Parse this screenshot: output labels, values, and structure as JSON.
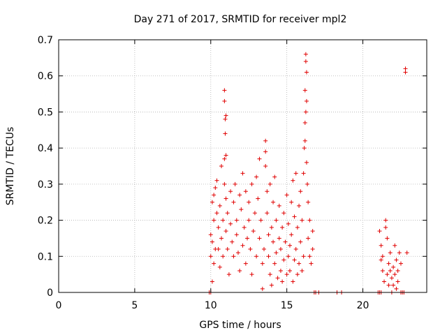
{
  "chart_data": {
    "type": "scatter",
    "title": "Day 271 of 2017, SRMTID for receiver mpl2",
    "xlabel": "GPS time / hours",
    "ylabel": "SRMTID / TECUs",
    "xlim": [
      0,
      24.2
    ],
    "ylim": [
      0,
      0.7
    ],
    "xticks": [
      0,
      5,
      10,
      15,
      20
    ],
    "xtick_labels": [
      "0",
      "5",
      "10",
      "15",
      "20"
    ],
    "yticks": [
      0,
      0.1,
      0.2,
      0.3,
      0.4,
      0.5,
      0.6,
      0.7
    ],
    "ytick_labels": [
      "0",
      "0.1",
      "0.2",
      "0.3",
      "0.4",
      "0.5",
      "0.6",
      "0.7"
    ],
    "grid": true,
    "marker": "plus",
    "color": "#e00000",
    "series": [
      {
        "points": [
          [
            9.9,
            0.0
          ],
          [
            10.0,
            0.0
          ],
          [
            10.1,
            0.03
          ],
          [
            10.0,
            0.1
          ],
          [
            10.1,
            0.14
          ],
          [
            10.2,
            0.2
          ],
          [
            10.0,
            0.16
          ],
          [
            10.3,
            0.12
          ],
          [
            10.2,
            0.08
          ],
          [
            10.1,
            0.25
          ],
          [
            10.2,
            0.27
          ],
          [
            10.3,
            0.29
          ],
          [
            10.4,
            0.31
          ],
          [
            10.4,
            0.22
          ],
          [
            10.5,
            0.18
          ],
          [
            10.5,
            0.12
          ],
          [
            10.6,
            0.07
          ],
          [
            10.6,
            0.24
          ],
          [
            10.7,
            0.35
          ],
          [
            10.7,
            0.15
          ],
          [
            10.8,
            0.2
          ],
          [
            10.8,
            0.1
          ],
          [
            10.9,
            0.37
          ],
          [
            10.9,
            0.3
          ],
          [
            10.95,
            0.44
          ],
          [
            10.95,
            0.48
          ],
          [
            11.0,
            0.49
          ],
          [
            10.9,
            0.53
          ],
          [
            10.9,
            0.56
          ],
          [
            11.0,
            0.38
          ],
          [
            11.0,
            0.26
          ],
          [
            11.0,
            0.17
          ],
          [
            11.1,
            0.12
          ],
          [
            11.1,
            0.22
          ],
          [
            11.2,
            0.05
          ],
          [
            11.3,
            0.28
          ],
          [
            11.3,
            0.19
          ],
          [
            11.4,
            0.14
          ],
          [
            11.5,
            0.25
          ],
          [
            11.5,
            0.1
          ],
          [
            11.6,
            0.3
          ],
          [
            11.7,
            0.2
          ],
          [
            11.7,
            0.16
          ],
          [
            11.8,
            0.11
          ],
          [
            11.9,
            0.06
          ],
          [
            11.9,
            0.27
          ],
          [
            12.0,
            0.23
          ],
          [
            12.1,
            0.13
          ],
          [
            12.1,
            0.33
          ],
          [
            12.2,
            0.18
          ],
          [
            12.3,
            0.28
          ],
          [
            12.3,
            0.08
          ],
          [
            12.4,
            0.15
          ],
          [
            12.5,
            0.25
          ],
          [
            12.5,
            0.2
          ],
          [
            12.6,
            0.12
          ],
          [
            12.7,
            0.3
          ],
          [
            12.7,
            0.05
          ],
          [
            12.8,
            0.17
          ],
          [
            12.9,
            0.22
          ],
          [
            13.0,
            0.1
          ],
          [
            13.0,
            0.32
          ],
          [
            13.1,
            0.26
          ],
          [
            13.2,
            0.15
          ],
          [
            13.2,
            0.37
          ],
          [
            13.3,
            0.2
          ],
          [
            13.4,
            0.01
          ],
          [
            13.4,
            0.08
          ],
          [
            13.5,
            0.12
          ],
          [
            13.6,
            0.39
          ],
          [
            13.6,
            0.42
          ],
          [
            13.6,
            0.35
          ],
          [
            13.7,
            0.28
          ],
          [
            13.7,
            0.22
          ],
          [
            13.8,
            0.16
          ],
          [
            13.8,
            0.1
          ],
          [
            13.9,
            0.3
          ],
          [
            13.9,
            0.05
          ],
          [
            14.0,
            0.18
          ],
          [
            14.0,
            0.02
          ],
          [
            14.1,
            0.25
          ],
          [
            14.1,
            0.14
          ],
          [
            14.2,
            0.08
          ],
          [
            14.2,
            0.32
          ],
          [
            14.3,
            0.2
          ],
          [
            14.3,
            0.11
          ],
          [
            14.4,
            0.04
          ],
          [
            14.5,
            0.15
          ],
          [
            14.5,
            0.24
          ],
          [
            14.6,
            0.06
          ],
          [
            14.6,
            0.12
          ],
          [
            14.7,
            0.03
          ],
          [
            14.7,
            0.18
          ],
          [
            14.8,
            0.09
          ],
          [
            14.8,
            0.22
          ],
          [
            14.9,
            0.14
          ],
          [
            15.0,
            0.05
          ],
          [
            15.0,
            0.27
          ],
          [
            15.1,
            0.1
          ],
          [
            15.1,
            0.19
          ],
          [
            15.2,
            0.13
          ],
          [
            15.2,
            0.06
          ],
          [
            15.3,
            0.25
          ],
          [
            15.3,
            0.16
          ],
          [
            15.4,
            0.03
          ],
          [
            15.4,
            0.31
          ],
          [
            15.5,
            0.21
          ],
          [
            15.5,
            0.09
          ],
          [
            15.6,
            0.33
          ],
          [
            15.6,
            0.12
          ],
          [
            15.7,
            0.05
          ],
          [
            15.7,
            0.18
          ],
          [
            15.8,
            0.24
          ],
          [
            15.8,
            0.08
          ],
          [
            15.9,
            0.14
          ],
          [
            15.9,
            0.28
          ],
          [
            16.0,
            0.2
          ],
          [
            16.0,
            0.06
          ],
          [
            16.1,
            0.1
          ],
          [
            16.1,
            0.33
          ],
          [
            16.15,
            0.4
          ],
          [
            16.2,
            0.42
          ],
          [
            16.2,
            0.47
          ],
          [
            16.25,
            0.5
          ],
          [
            16.2,
            0.56
          ],
          [
            16.3,
            0.53
          ],
          [
            16.3,
            0.36
          ],
          [
            16.25,
            0.64
          ],
          [
            16.25,
            0.66
          ],
          [
            16.3,
            0.61
          ],
          [
            16.35,
            0.3
          ],
          [
            16.4,
            0.25
          ],
          [
            16.4,
            0.15
          ],
          [
            16.5,
            0.1
          ],
          [
            16.5,
            0.2
          ],
          [
            16.6,
            0.08
          ],
          [
            16.7,
            0.12
          ],
          [
            16.7,
            0.17
          ],
          [
            16.8,
            0.0
          ],
          [
            16.9,
            0.0
          ],
          [
            17.1,
            0.0
          ],
          [
            18.3,
            0.0
          ],
          [
            18.6,
            0.0
          ],
          [
            21.0,
            0.0
          ],
          [
            21.1,
            0.0
          ],
          [
            21.2,
            0.0
          ],
          [
            21.1,
            0.17
          ],
          [
            21.2,
            0.13
          ],
          [
            21.2,
            0.09
          ],
          [
            21.3,
            0.06
          ],
          [
            21.3,
            0.1
          ],
          [
            21.4,
            0.03
          ],
          [
            21.5,
            0.18
          ],
          [
            21.5,
            0.2
          ],
          [
            21.6,
            0.15
          ],
          [
            21.6,
            0.05
          ],
          [
            21.7,
            0.08
          ],
          [
            21.7,
            0.02
          ],
          [
            21.8,
            0.11
          ],
          [
            21.8,
            0.06
          ],
          [
            21.9,
            0.04
          ],
          [
            21.9,
            0.0
          ],
          [
            22.0,
            0.07
          ],
          [
            22.0,
            0.02
          ],
          [
            22.1,
            0.05
          ],
          [
            22.1,
            0.13
          ],
          [
            22.2,
            0.01
          ],
          [
            22.2,
            0.09
          ],
          [
            22.3,
            0.03
          ],
          [
            22.3,
            0.06
          ],
          [
            22.4,
            0.11
          ],
          [
            22.5,
            0.08
          ],
          [
            22.5,
            0.0
          ],
          [
            22.6,
            0.0
          ],
          [
            22.7,
            0.0
          ],
          [
            22.8,
            0.62
          ],
          [
            22.8,
            0.61
          ],
          [
            22.9,
            0.11
          ]
        ]
      }
    ]
  }
}
